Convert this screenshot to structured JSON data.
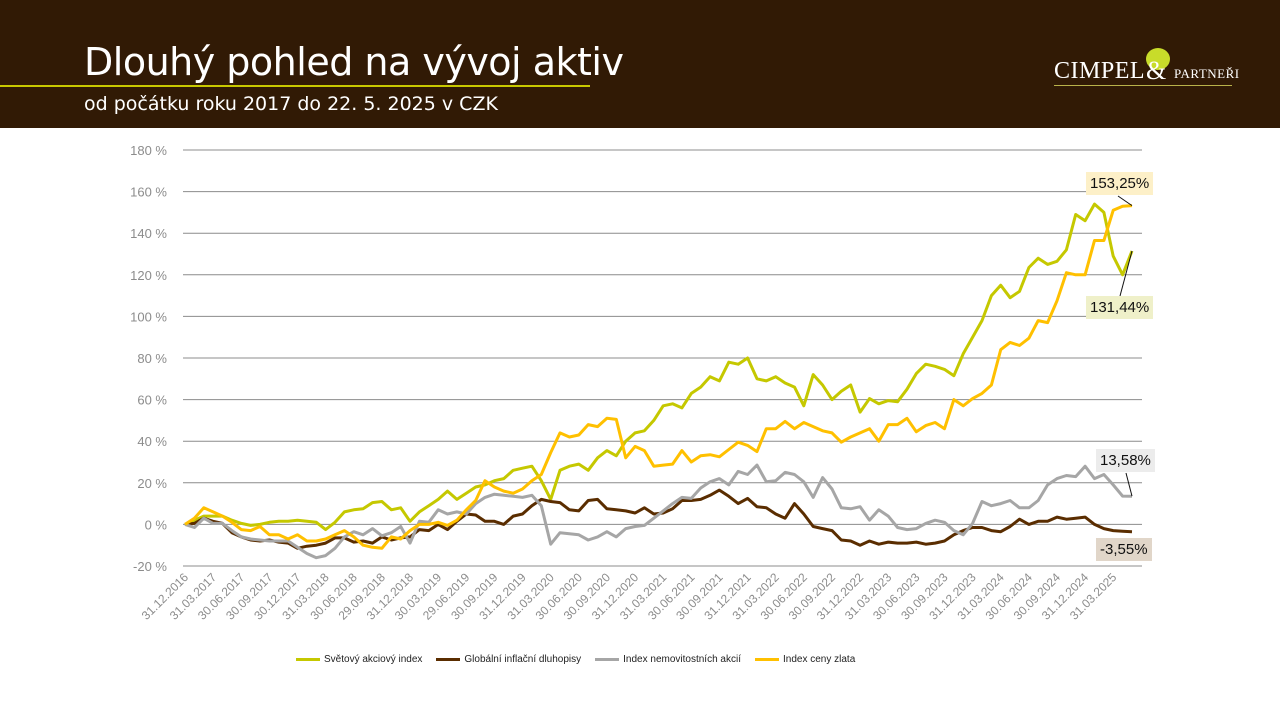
{
  "header": {
    "title": "Dlouhý pohled na vývoj aktiv",
    "subtitle": "od počátku roku 2017 do 22. 5. 2025 v CZK",
    "logo_text": "CIMPEL & PARTNEŘI",
    "logo_main": "CIMPEL",
    "logo_amp": "&",
    "logo_sub": "PARTNEŘI"
  },
  "colors": {
    "header_bg": "#311a05",
    "accent": "#c8c800",
    "equity": "#c5c800",
    "bonds": "#5a2d00",
    "real_estate": "#a6a6a6",
    "gold": "#ffc000"
  },
  "chart_data": {
    "type": "line",
    "title": "Dlouhý pohled na vývoj aktiv",
    "xlabel": "",
    "ylabel": "",
    "x_unit": "months since 31.12.2016 (monthly, last point 22.5.2025)",
    "ylim": [
      -20,
      180
    ],
    "yticks": [
      -20,
      0,
      20,
      40,
      60,
      80,
      100,
      120,
      140,
      160,
      180
    ],
    "ytick_labels": [
      "-20 %",
      "0 %",
      "20 %",
      "40 %",
      "60 %",
      "80 %",
      "100 %",
      "120 %",
      "140 %",
      "160 %",
      "180 %"
    ],
    "xtick_labels": [
      "31.12.2016",
      "31.03.2017",
      "30.06.2017",
      "30.09.2017",
      "30.12.2017",
      "31.03.2018",
      "30.06.2018",
      "29.09.2018",
      "31.12.2018",
      "30.03.2019",
      "29.06.2019",
      "30.09.2019",
      "31.12.2019",
      "31.03.2020",
      "30.06.2020",
      "30.09.2020",
      "31.12.2020",
      "31.03.2021",
      "30.06.2021",
      "30.09.2021",
      "31.12.2021",
      "31.03.2022",
      "30.06.2022",
      "30.09.2022",
      "31.12.2022",
      "31.03.2023",
      "30.06.2023",
      "30.09.2023",
      "31.12.2023",
      "31.03.2024",
      "30.06.2024",
      "30.09.2024",
      "31.12.2024",
      "31.03.2025"
    ],
    "grid": true,
    "legend_position": "bottom",
    "series": [
      {
        "name": "Světový akciový index",
        "key": "equity",
        "end_label": "131,44%",
        "values": [
          0,
          2,
          4,
          4,
          4,
          2,
          0.5,
          -0.5,
          0,
          1,
          1.5,
          1.5,
          2,
          1.5,
          1,
          -2.5,
          1,
          6,
          7,
          7.5,
          10.5,
          11,
          7,
          8,
          1.5,
          6,
          9,
          12,
          16,
          12,
          15,
          18,
          19,
          21,
          22,
          26,
          27,
          28,
          21,
          12,
          26,
          28,
          29,
          26,
          32,
          35.5,
          33,
          40,
          44,
          45,
          50,
          57,
          58,
          56,
          63,
          66,
          71,
          69,
          78,
          77,
          80,
          70,
          69,
          71,
          68,
          66,
          57,
          72,
          67,
          60,
          64,
          67,
          54,
          60.5,
          58,
          59.5,
          59,
          65,
          72.5,
          77,
          76,
          74.5,
          71.5,
          82,
          90,
          98,
          110,
          115,
          109,
          112,
          123.5,
          128,
          125,
          126.5,
          132,
          149,
          146,
          154,
          150,
          129,
          120,
          131.44
        ]
      },
      {
        "name": "Globální inflační dluhopisy",
        "key": "bonds",
        "end_label": "-3,55%",
        "values": [
          0,
          0.5,
          3,
          1.5,
          0.5,
          -4,
          -6,
          -7.5,
          -8,
          -7.5,
          -8.5,
          -9,
          -11.5,
          -10.5,
          -10,
          -9,
          -6.5,
          -6.5,
          -8.5,
          -8,
          -9,
          -6,
          -7.5,
          -6.5,
          -6,
          -2.5,
          -3,
          0,
          -2.5,
          1.5,
          5,
          4.5,
          1.5,
          1.5,
          0,
          4,
          5,
          9,
          12,
          11,
          10.5,
          7,
          6.5,
          11.5,
          12,
          7.5,
          7,
          6.5,
          5.5,
          8,
          5,
          5.5,
          7.5,
          11.5,
          11.5,
          12,
          14,
          16.5,
          13.5,
          10,
          12.5,
          8.5,
          8,
          5,
          3,
          10,
          5,
          -1,
          -2,
          -3,
          -7.5,
          -8,
          -10,
          -8,
          -9.5,
          -8.5,
          -9,
          -9,
          -8.5,
          -9.5,
          -9,
          -8,
          -5,
          -3,
          -1.5,
          -1.5,
          -3,
          -3.5,
          -1,
          2.5,
          0,
          1.5,
          1.5,
          3.5,
          2.5,
          3,
          3.5,
          0,
          -2,
          -3,
          -3.3,
          -3.55
        ]
      },
      {
        "name": "Index nemovitostních akcií",
        "key": "real_estate",
        "end_label": "13,58%",
        "values": [
          0,
          -1.5,
          3,
          0.5,
          0.5,
          -3,
          -6,
          -7,
          -7.5,
          -8,
          -8,
          -8,
          -11,
          -14,
          -16,
          -15,
          -11.5,
          -6,
          -3.5,
          -5,
          -2,
          -5.5,
          -4,
          -1,
          -9,
          1.5,
          1,
          7,
          5,
          6,
          5,
          10,
          13,
          14.5,
          14,
          13.5,
          13,
          14,
          9,
          -9.5,
          -4,
          -4.5,
          -5,
          -7.5,
          -6,
          -3.5,
          -6,
          -2,
          -1,
          -0.5,
          3,
          6.5,
          10,
          13,
          12.5,
          17.5,
          20.5,
          22,
          19,
          25.5,
          24,
          28.5,
          20.5,
          21,
          25,
          24,
          20.5,
          13,
          22.5,
          17,
          8,
          7.5,
          8.5,
          2,
          7,
          4,
          -1.5,
          -2.5,
          -2,
          0.5,
          2,
          1,
          -3,
          -5,
          0.5,
          11,
          9,
          10,
          11.5,
          8,
          8,
          11.5,
          19,
          22,
          23.5,
          23,
          28,
          22,
          24,
          19,
          13.6,
          13.58
        ]
      },
      {
        "name": "Index ceny zlata",
        "key": "gold",
        "end_label": "153,25%",
        "values": [
          0,
          3,
          8,
          6,
          4,
          1,
          -2.5,
          -3,
          -1,
          -5,
          -5,
          -7,
          -5,
          -8,
          -8,
          -7,
          -5,
          -3,
          -6,
          -10,
          -11,
          -11.5,
          -6,
          -7,
          -3,
          0,
          0,
          1,
          -0.5,
          2,
          7,
          11.5,
          21,
          18,
          16,
          15,
          17,
          21,
          24,
          34.5,
          44,
          42,
          43,
          48,
          47,
          51,
          50.5,
          32,
          37.5,
          35.5,
          28,
          28.5,
          29,
          35.5,
          30,
          33,
          33.5,
          32.5,
          36,
          39.5,
          38,
          35,
          46,
          46,
          49.5,
          46,
          49,
          47,
          45,
          44,
          39.5,
          42,
          44,
          46,
          40,
          48,
          48,
          51,
          44.5,
          47.5,
          49,
          46,
          60,
          57,
          60.5,
          63,
          67,
          84,
          87.5,
          86,
          89.5,
          98,
          97,
          107.5,
          121,
          120,
          120,
          136.5,
          136.5,
          151,
          153,
          153.25
        ]
      }
    ],
    "annotations": [
      {
        "series": "gold",
        "text": "153,25%"
      },
      {
        "series": "equity",
        "text": "131,44%"
      },
      {
        "series": "real_estate",
        "text": "13,58%"
      },
      {
        "series": "bonds",
        "text": "-3,55%"
      }
    ]
  }
}
